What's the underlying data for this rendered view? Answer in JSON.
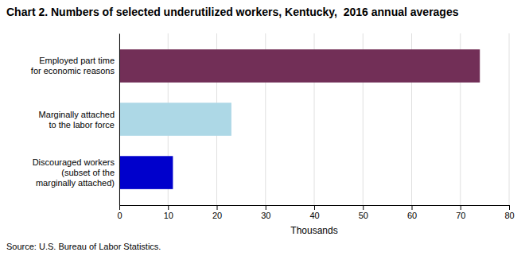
{
  "chart_data": {
    "type": "bar",
    "orientation": "horizontal",
    "title": "Chart 2. Numbers of selected underutilized workers, Kentucky,  2016 annual averages",
    "categories": [
      "Discouraged workers\n(subset of the\nmarginally attached)",
      "Marginally attached\nto the labor force",
      "Employed part time\nfor economic reasons"
    ],
    "values": [
      11,
      23,
      74
    ],
    "colors": [
      "#0000cc",
      "#add8e6",
      "#722f57"
    ],
    "xlim": [
      0,
      80
    ],
    "xticks": [
      0,
      10,
      20,
      30,
      40,
      50,
      60,
      70,
      80
    ],
    "xlabel": "Thousands",
    "source": "Source: U.S. Bureau of Labor Statistics.",
    "grid": true
  }
}
